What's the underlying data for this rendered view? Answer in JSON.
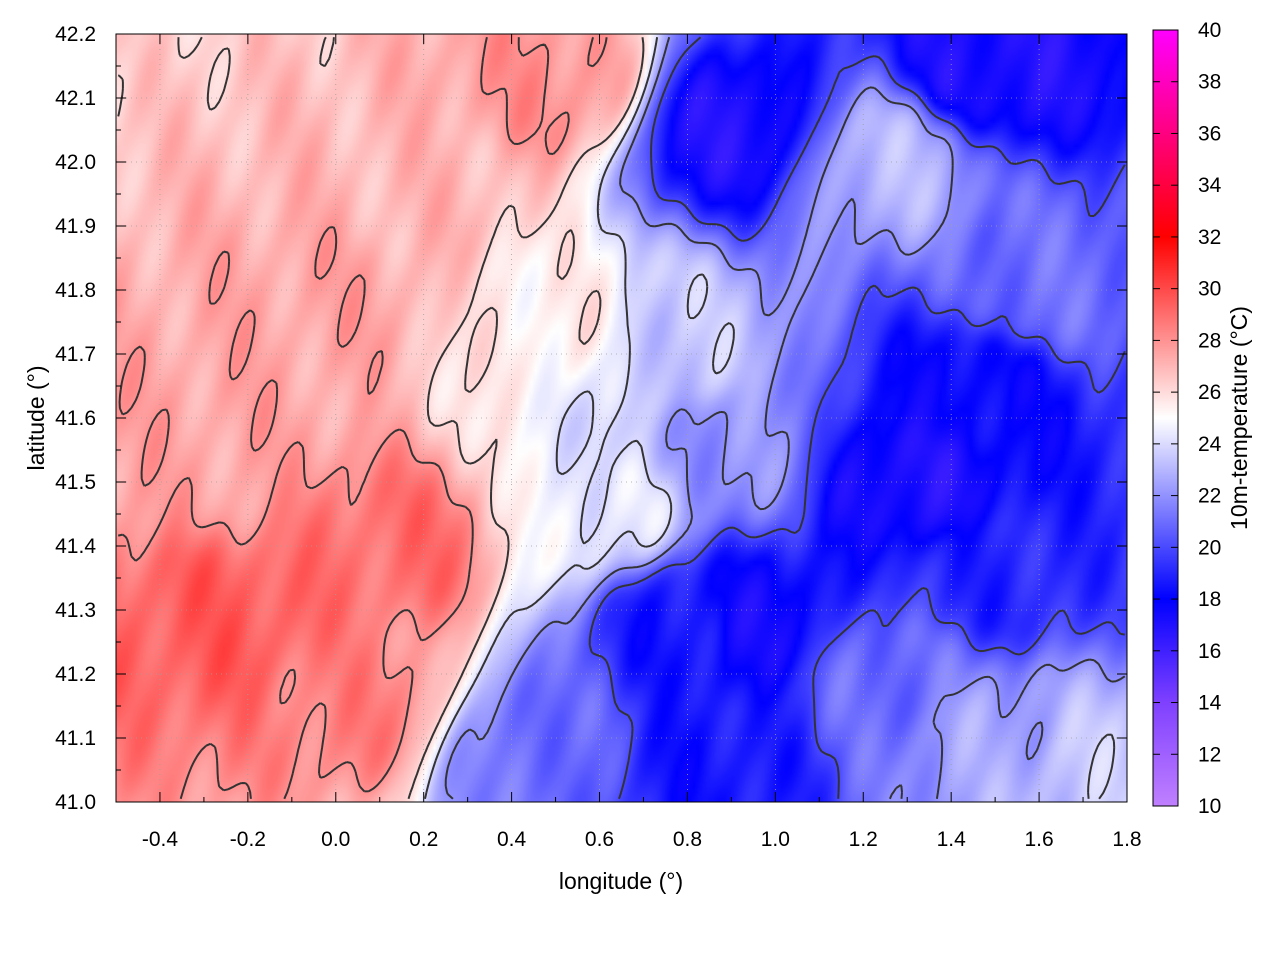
{
  "chart_data": {
    "type": "heatmap",
    "xlabel": "longitude (°)",
    "ylabel": "latitude (°)",
    "colorbar_label": "10m-temperature (°C)",
    "xlim": [
      -0.5,
      1.8
    ],
    "ylim": [
      41.0,
      42.2
    ],
    "xticks": [
      -0.4,
      -0.2,
      0.0,
      0.2,
      0.4,
      0.6,
      0.8,
      1.0,
      1.2,
      1.4,
      1.6,
      1.8
    ],
    "xtick_labels": [
      "-0.4",
      "-0.2",
      "0.0",
      "0.2",
      "0.4",
      "0.6",
      "0.8",
      "1.0",
      "1.2",
      "1.4",
      "1.6",
      "1.8"
    ],
    "yticks": [
      41.0,
      41.1,
      41.2,
      41.3,
      41.4,
      41.5,
      41.6,
      41.7,
      41.8,
      41.9,
      42.0,
      42.1,
      42.2
    ],
    "ytick_labels": [
      "41.0",
      "41.1",
      "41.2",
      "41.3",
      "41.4",
      "41.5",
      "41.6",
      "41.7",
      "41.8",
      "41.9",
      "42.0",
      "42.1",
      "42.2"
    ],
    "colorbar_range": [
      10,
      40
    ],
    "colorbar_ticks": [
      10,
      12,
      14,
      16,
      18,
      20,
      22,
      24,
      26,
      28,
      30,
      32,
      34,
      36,
      38,
      40
    ],
    "colorbar_tick_labels": [
      "10",
      "12",
      "14",
      "16",
      "18",
      "20",
      "22",
      "24",
      "26",
      "28",
      "30",
      "32",
      "34",
      "36",
      "38",
      "40"
    ],
    "colormap": [
      {
        "value": 10,
        "color": "#c080ff"
      },
      {
        "value": 14,
        "color": "#7f40ff"
      },
      {
        "value": 18,
        "color": "#0000ff"
      },
      {
        "value": 25,
        "color": "#ffffff"
      },
      {
        "value": 32,
        "color": "#ff0000"
      },
      {
        "value": 36,
        "color": "#ff0080"
      },
      {
        "value": 40,
        "color": "#ff00ff"
      }
    ],
    "grid": true,
    "value_centers": [
      {
        "lon": -0.25,
        "lat": 41.28,
        "value": 29.5
      },
      {
        "lon": 0.05,
        "lat": 41.15,
        "value": 28.5
      },
      {
        "lon": -0.3,
        "lat": 41.55,
        "value": 27.5
      },
      {
        "lon": 0.15,
        "lat": 41.4,
        "value": 29.0
      },
      {
        "lon": 0.0,
        "lat": 41.78,
        "value": 27.5
      },
      {
        "lon": 0.2,
        "lat": 41.95,
        "value": 27.0
      },
      {
        "lon": 0.5,
        "lat": 42.12,
        "value": 28.0
      },
      {
        "lon": 0.6,
        "lat": 41.45,
        "value": 24.5
      },
      {
        "lon": 0.5,
        "lat": 41.75,
        "value": 25.5
      },
      {
        "lon": 0.75,
        "lat": 41.7,
        "value": 23.5
      },
      {
        "lon": 0.9,
        "lat": 41.55,
        "value": 22.0
      },
      {
        "lon": 0.95,
        "lat": 41.28,
        "value": 17.5
      },
      {
        "lon": 0.8,
        "lat": 41.28,
        "value": 18.5
      },
      {
        "lon": 0.85,
        "lat": 41.05,
        "value": 18.5
      },
      {
        "lon": 0.45,
        "lat": 41.08,
        "value": 21.0
      },
      {
        "lon": 1.3,
        "lat": 41.5,
        "value": 17.0
      },
      {
        "lon": 1.45,
        "lat": 41.65,
        "value": 18.0
      },
      {
        "lon": 1.5,
        "lat": 41.35,
        "value": 19.0
      },
      {
        "lon": 1.6,
        "lat": 41.8,
        "value": 21.0
      },
      {
        "lon": 1.5,
        "lat": 42.15,
        "value": 17.0
      },
      {
        "lon": 0.9,
        "lat": 42.05,
        "value": 17.0
      },
      {
        "lon": 1.25,
        "lat": 42.0,
        "value": 23.0
      },
      {
        "lon": 1.5,
        "lat": 41.1,
        "value": 22.5
      },
      {
        "lon": 1.7,
        "lat": 41.05,
        "value": 23.5
      },
      {
        "lon": 1.25,
        "lat": 41.2,
        "value": 21.0
      }
    ]
  }
}
